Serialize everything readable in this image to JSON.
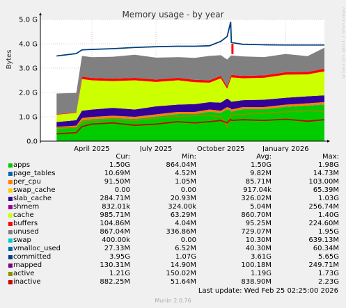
{
  "colors": {
    "background": "#f0f0f0",
    "plot_background": "#ffffff",
    "grid": "#e6c8c8",
    "title": "#333333",
    "side_label": "#cccccc"
  },
  "chart_data": {
    "type": "area",
    "title": "Memory usage - by year",
    "ylabel": "Bytes",
    "side_label": "RRDTOOL / TOBI OETIKER",
    "ylim": [
      0,
      5.0
    ],
    "xlim": [
      "2025-01-18",
      "2026-02-25"
    ],
    "y_ticks": [
      {
        "value": 0.0,
        "label": "0.0"
      },
      {
        "value": 1.0,
        "label": "1.0 G"
      },
      {
        "value": 2.0,
        "label": "2.0 G"
      },
      {
        "value": 3.0,
        "label": "3.0 G"
      },
      {
        "value": 4.0,
        "label": "4.0 G"
      },
      {
        "value": 5.0,
        "label": "5.0 G"
      }
    ],
    "x_ticks": [
      {
        "value": "2025-04-01",
        "label": "April 2025"
      },
      {
        "value": "2025-07-01",
        "label": "July 2025"
      },
      {
        "value": "2025-10-01",
        "label": "October 2025"
      },
      {
        "value": "2026-01-01",
        "label": "January 2026"
      }
    ],
    "grid": true,
    "x": [
      "2025-02-10",
      "2025-03-10",
      "2025-03-18",
      "2025-04-01",
      "2025-05-01",
      "2025-06-01",
      "2025-07-01",
      "2025-08-01",
      "2025-08-25",
      "2025-09-15",
      "2025-10-01",
      "2025-10-10",
      "2025-10-15",
      "2025-10-16",
      "2025-11-01",
      "2025-12-01",
      "2026-01-01",
      "2026-02-01",
      "2026-02-25"
    ],
    "stacked_series": [
      {
        "name": "apps",
        "color": "#00cc00",
        "values": [
          0.5,
          0.55,
          0.85,
          0.9,
          0.95,
          0.9,
          1.0,
          1.1,
          1.1,
          1.2,
          1.15,
          1.3,
          1.25,
          1.2,
          1.3,
          1.3,
          1.4,
          1.45,
          1.5
        ]
      },
      {
        "name": "page_tables",
        "color": "#0066b3",
        "values": [
          0.005,
          0.005,
          0.008,
          0.008,
          0.008,
          0.009,
          0.009,
          0.01,
          0.01,
          0.01,
          0.01,
          0.01,
          0.01,
          0.01,
          0.01,
          0.01,
          0.01,
          0.0107,
          0.0107
        ]
      },
      {
        "name": "per_cpu",
        "color": "#ff8000",
        "values": [
          0.08,
          0.085,
          0.09,
          0.09,
          0.09,
          0.09,
          0.091,
          0.091,
          0.091,
          0.091,
          0.091,
          0.091,
          0.091,
          0.091,
          0.0915,
          0.0915,
          0.0915,
          0.0915,
          0.0915
        ]
      },
      {
        "name": "swap_cache",
        "color": "#ffcc00",
        "values": [
          0,
          0,
          0,
          0,
          0,
          0,
          0,
          0,
          0,
          0,
          0,
          0,
          0,
          0,
          0,
          0,
          0,
          0,
          0
        ]
      },
      {
        "name": "slab_cache",
        "color": "#330099",
        "values": [
          0.2,
          0.22,
          0.3,
          0.3,
          0.32,
          0.3,
          0.33,
          0.3,
          0.32,
          0.3,
          0.33,
          0.35,
          0.3,
          0.32,
          0.28,
          0.3,
          0.28,
          0.29,
          0.28
        ]
      },
      {
        "name": "shmem",
        "color": "#990099",
        "values": [
          0.0008,
          0.0008,
          0.0008,
          0.0008,
          0.0008,
          0.0008,
          0.0008,
          0.0008,
          0.0008,
          0.0008,
          0.0008,
          0.0008,
          0.0008,
          0.0008,
          0.0008,
          0.0008,
          0.0008,
          0.0008,
          0.0008
        ]
      },
      {
        "name": "cache",
        "color": "#ccff00",
        "values": [
          0.3,
          0.3,
          1.3,
          1.2,
          1.1,
          1.2,
          1.0,
          1.0,
          0.9,
          0.8,
          1.0,
          0.4,
          0.9,
          1.0,
          0.9,
          0.9,
          0.95,
          0.9,
          0.986
        ]
      },
      {
        "name": "buffers",
        "color": "#ff0000",
        "values": [
          0.02,
          0.02,
          0.1,
          0.1,
          0.1,
          0.1,
          0.1,
          0.1,
          0.1,
          0.1,
          0.1,
          0.1,
          0.1,
          0.1,
          0.1,
          0.1,
          0.1,
          0.1,
          0.105
        ]
      },
      {
        "name": "unused",
        "color": "#808080",
        "values": [
          0.85,
          0.8,
          0.85,
          0.85,
          0.9,
          0.95,
          0.9,
          0.85,
          0.9,
          1.0,
          0.85,
          1.1,
          0.85,
          0.8,
          0.8,
          0.75,
          0.75,
          0.65,
          0.867
        ]
      }
    ],
    "line_series": [
      {
        "name": "committed",
        "color": "#004080",
        "values": [
          3.5,
          3.6,
          3.75,
          3.77,
          3.8,
          3.85,
          3.88,
          3.9,
          3.9,
          3.92,
          4.1,
          4.3,
          4.9,
          4.05,
          3.98,
          3.96,
          3.95,
          3.95,
          3.95
        ]
      },
      {
        "name": "active",
        "color": "#8f8f00",
        "values": [
          0.55,
          0.55,
          0.8,
          0.85,
          0.9,
          0.85,
          0.95,
          1.0,
          1.05,
          1.05,
          1.0,
          0.6,
          1.1,
          1.1,
          1.1,
          1.15,
          1.2,
          1.25,
          1.21
        ]
      },
      {
        "name": "inactive",
        "color": "#cc0000",
        "values": [
          0.3,
          0.35,
          0.6,
          0.7,
          0.75,
          0.65,
          0.7,
          0.8,
          0.75,
          0.8,
          0.85,
          0.75,
          0.9,
          0.85,
          0.88,
          0.85,
          0.9,
          0.82,
          0.88
        ]
      }
    ],
    "swap_spike": {
      "name": "swap",
      "color": "#ff0000",
      "x": "2025-10-17",
      "value": 0.25
    }
  },
  "legend": {
    "headers": {
      "cur": "Cur:",
      "min": "Min:",
      "avg": "Avg:",
      "max": "Max:"
    },
    "rows": [
      {
        "name": "apps",
        "color": "#00cc00",
        "cur": "1.50G",
        "min": "864.04M",
        "avg": "1.50G",
        "max": "1.98G"
      },
      {
        "name": "page_tables",
        "color": "#0066b3",
        "cur": "10.69M",
        "min": "4.52M",
        "avg": "9.82M",
        "max": "14.73M"
      },
      {
        "name": "per_cpu",
        "color": "#ff8000",
        "cur": "91.50M",
        "min": "1.05M",
        "avg": "85.71M",
        "max": "103.00M"
      },
      {
        "name": "swap_cache",
        "color": "#ffcc00",
        "cur": "0.00",
        "min": "0.00",
        "avg": "917.04k",
        "max": "65.39M"
      },
      {
        "name": "slab_cache",
        "color": "#330099",
        "cur": "284.71M",
        "min": "20.93M",
        "avg": "326.02M",
        "max": "1.03G"
      },
      {
        "name": "shmem",
        "color": "#990099",
        "cur": "832.01k",
        "min": "324.00k",
        "avg": "5.04M",
        "max": "256.74M"
      },
      {
        "name": "cache",
        "color": "#ccff00",
        "cur": "985.71M",
        "min": "63.29M",
        "avg": "860.70M",
        "max": "1.40G"
      },
      {
        "name": "buffers",
        "color": "#ff0000",
        "cur": "104.86M",
        "min": "4.04M",
        "avg": "95.25M",
        "max": "224.60M"
      },
      {
        "name": "unused",
        "color": "#808080",
        "cur": "867.04M",
        "min": "336.86M",
        "avg": "729.07M",
        "max": "1.95G"
      },
      {
        "name": "swap",
        "color": "#00cccc",
        "cur": "400.00k",
        "min": "0.00",
        "avg": "10.30M",
        "max": "639.13M"
      },
      {
        "name": "vmalloc_used",
        "color": "#0066b3",
        "cur": "27.33M",
        "min": "6.52M",
        "avg": "40.30M",
        "max": "60.34M"
      },
      {
        "name": "committed",
        "color": "#004080",
        "cur": "3.95G",
        "min": "1.07G",
        "avg": "3.61G",
        "max": "5.65G"
      },
      {
        "name": "mapped",
        "color": "#800080",
        "cur": "130.31M",
        "min": "14.90M",
        "avg": "100.18M",
        "max": "249.71M"
      },
      {
        "name": "active",
        "color": "#8f8f00",
        "cur": "1.21G",
        "min": "150.02M",
        "avg": "1.19G",
        "max": "1.73G"
      },
      {
        "name": "inactive",
        "color": "#cc0000",
        "cur": "882.25M",
        "min": "51.64M",
        "avg": "838.90M",
        "max": "2.23G"
      }
    ]
  },
  "footer": {
    "last_update": "Last update: Wed Feb 25 02:25:00 2026",
    "munin": "Munin 2.0.76"
  }
}
